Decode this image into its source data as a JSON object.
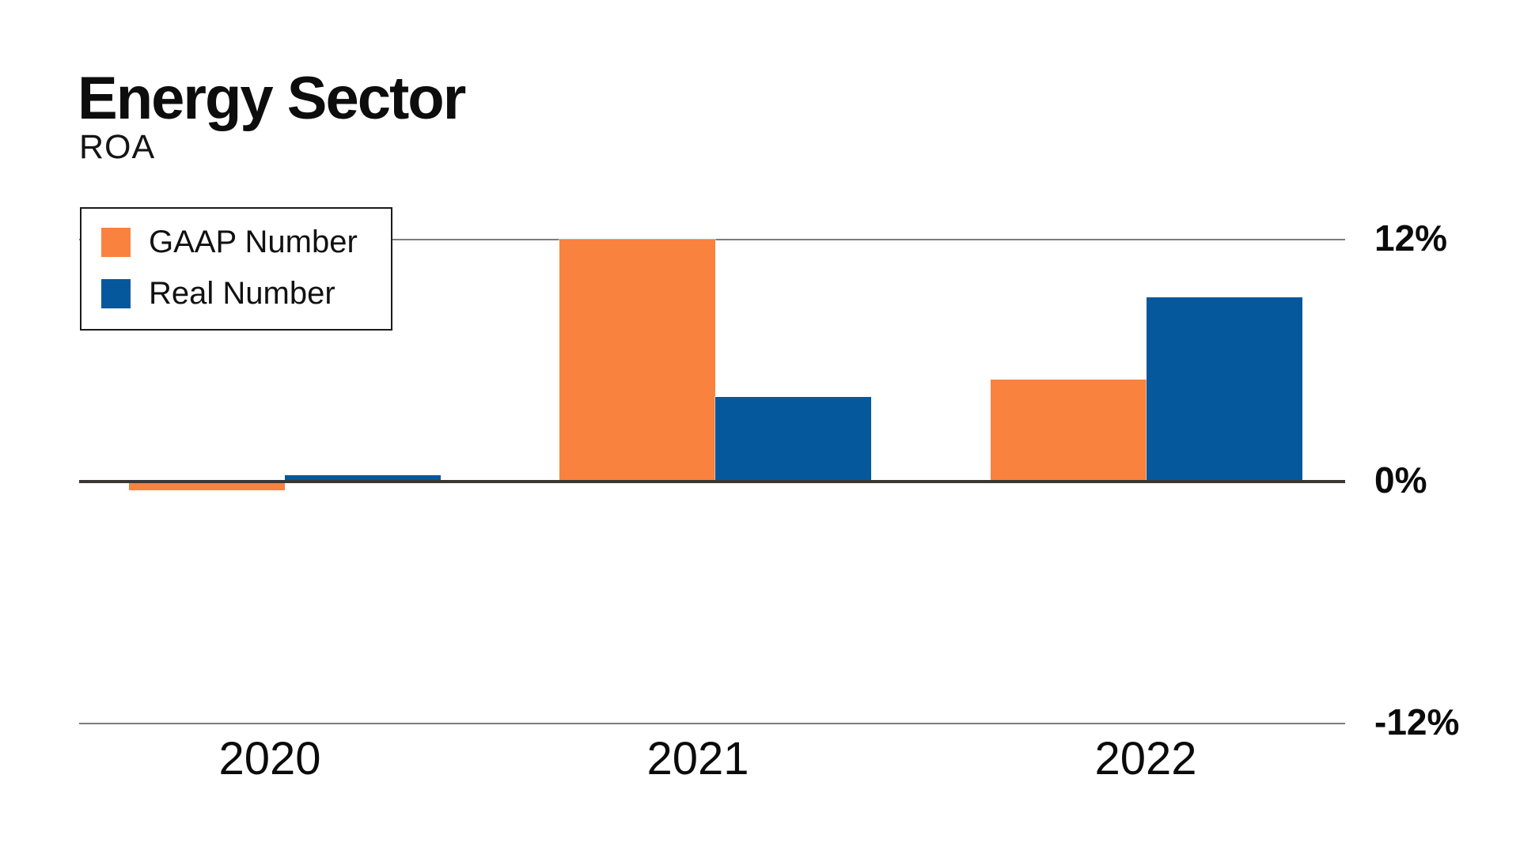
{
  "header": {
    "title": "Energy Sector",
    "subtitle": "ROA"
  },
  "chart_data": {
    "type": "bar",
    "title": "Energy Sector",
    "subtitle": "ROA",
    "xlabel": "",
    "ylabel": "ROA",
    "unit": "%",
    "categories": [
      "2020",
      "2021",
      "2022"
    ],
    "series": [
      {
        "name": "GAAP Number",
        "color": "#F9823E",
        "values": [
          -0.45,
          12.0,
          5.05
        ]
      },
      {
        "name": "Real Number",
        "color": "#06589C",
        "values": [
          0.3,
          4.2,
          9.15
        ]
      }
    ],
    "ylim": [
      -12,
      12
    ],
    "yticks": [
      {
        "label": "12%",
        "value": 12
      },
      {
        "label": "0%",
        "value": 0
      },
      {
        "label": "-12%",
        "value": -12
      }
    ],
    "gridline_values": [
      12,
      -12
    ],
    "grid_on": true,
    "legend_position": "top-left",
    "colors": {
      "zero_axis": "#3A3733",
      "gridline": "#7D7D7D",
      "text": "#0b0b0b",
      "background": "#ffffff"
    }
  }
}
